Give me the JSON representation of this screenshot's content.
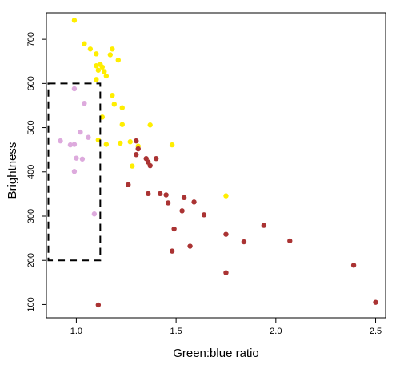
{
  "chart_data": {
    "type": "scatter",
    "xlabel": "Green:blue ratio",
    "ylabel": "Brightness",
    "xlim": [
      0.85,
      2.55
    ],
    "ylim": [
      70,
      760
    ],
    "x_ticks": [
      1.0,
      1.5,
      2.0,
      2.5
    ],
    "x_tick_labels": [
      "1.0",
      "1.5",
      "2.0",
      "2.5"
    ],
    "y_ticks": [
      100,
      200,
      300,
      400,
      500,
      600,
      700
    ],
    "y_tick_labels": [
      "100",
      "200",
      "300",
      "400",
      "500",
      "600",
      "700"
    ],
    "grid": false,
    "legend": "none",
    "box": {
      "x0": 0.86,
      "x1": 1.12,
      "y0": 200,
      "y1": 600,
      "line_style": "dashed"
    },
    "series": [
      {
        "color": "#ffee00",
        "points": [
          [
            0.99,
            743
          ],
          [
            1.04,
            690
          ],
          [
            1.07,
            678
          ],
          [
            1.1,
            667
          ],
          [
            1.18,
            678
          ],
          [
            1.17,
            665
          ],
          [
            1.21,
            653
          ],
          [
            1.1,
            640
          ],
          [
            1.12,
            643
          ],
          [
            1.13,
            637
          ],
          [
            1.11,
            630
          ],
          [
            1.14,
            627
          ],
          [
            1.15,
            617
          ],
          [
            1.1,
            609
          ],
          [
            1.18,
            573
          ],
          [
            1.19,
            553
          ],
          [
            1.23,
            545
          ],
          [
            1.13,
            524
          ],
          [
            1.23,
            507
          ],
          [
            1.37,
            506
          ],
          [
            1.11,
            472
          ],
          [
            1.22,
            465
          ],
          [
            1.27,
            468
          ],
          [
            1.15,
            462
          ],
          [
            1.31,
            458
          ],
          [
            1.48,
            461
          ],
          [
            1.28,
            413
          ],
          [
            1.36,
            422
          ],
          [
            1.75,
            346
          ]
        ]
      },
      {
        "color": "#ddaadd",
        "points": [
          [
            0.99,
            588
          ],
          [
            1.04,
            555
          ],
          [
            1.02,
            490
          ],
          [
            1.06,
            478
          ],
          [
            0.92,
            470
          ],
          [
            0.97,
            461
          ],
          [
            0.99,
            462
          ],
          [
            1.0,
            431
          ],
          [
            1.03,
            429
          ],
          [
            0.99,
            401
          ],
          [
            1.09,
            305
          ]
        ]
      },
      {
        "color": "#aa3333",
        "points": [
          [
            1.3,
            470
          ],
          [
            1.31,
            452
          ],
          [
            1.3,
            439
          ],
          [
            1.35,
            430
          ],
          [
            1.4,
            430
          ],
          [
            1.36,
            422
          ],
          [
            1.37,
            414
          ],
          [
            1.26,
            371
          ],
          [
            1.36,
            351
          ],
          [
            1.42,
            351
          ],
          [
            1.45,
            348
          ],
          [
            1.54,
            342
          ],
          [
            1.46,
            330
          ],
          [
            1.59,
            332
          ],
          [
            1.53,
            312
          ],
          [
            1.64,
            303
          ],
          [
            1.94,
            279
          ],
          [
            1.49,
            271
          ],
          [
            1.75,
            259
          ],
          [
            1.84,
            242
          ],
          [
            2.07,
            244
          ],
          [
            1.57,
            232
          ],
          [
            1.48,
            221
          ],
          [
            2.39,
            189
          ],
          [
            1.75,
            172
          ],
          [
            2.5,
            105
          ],
          [
            1.11,
            99
          ]
        ]
      }
    ]
  }
}
